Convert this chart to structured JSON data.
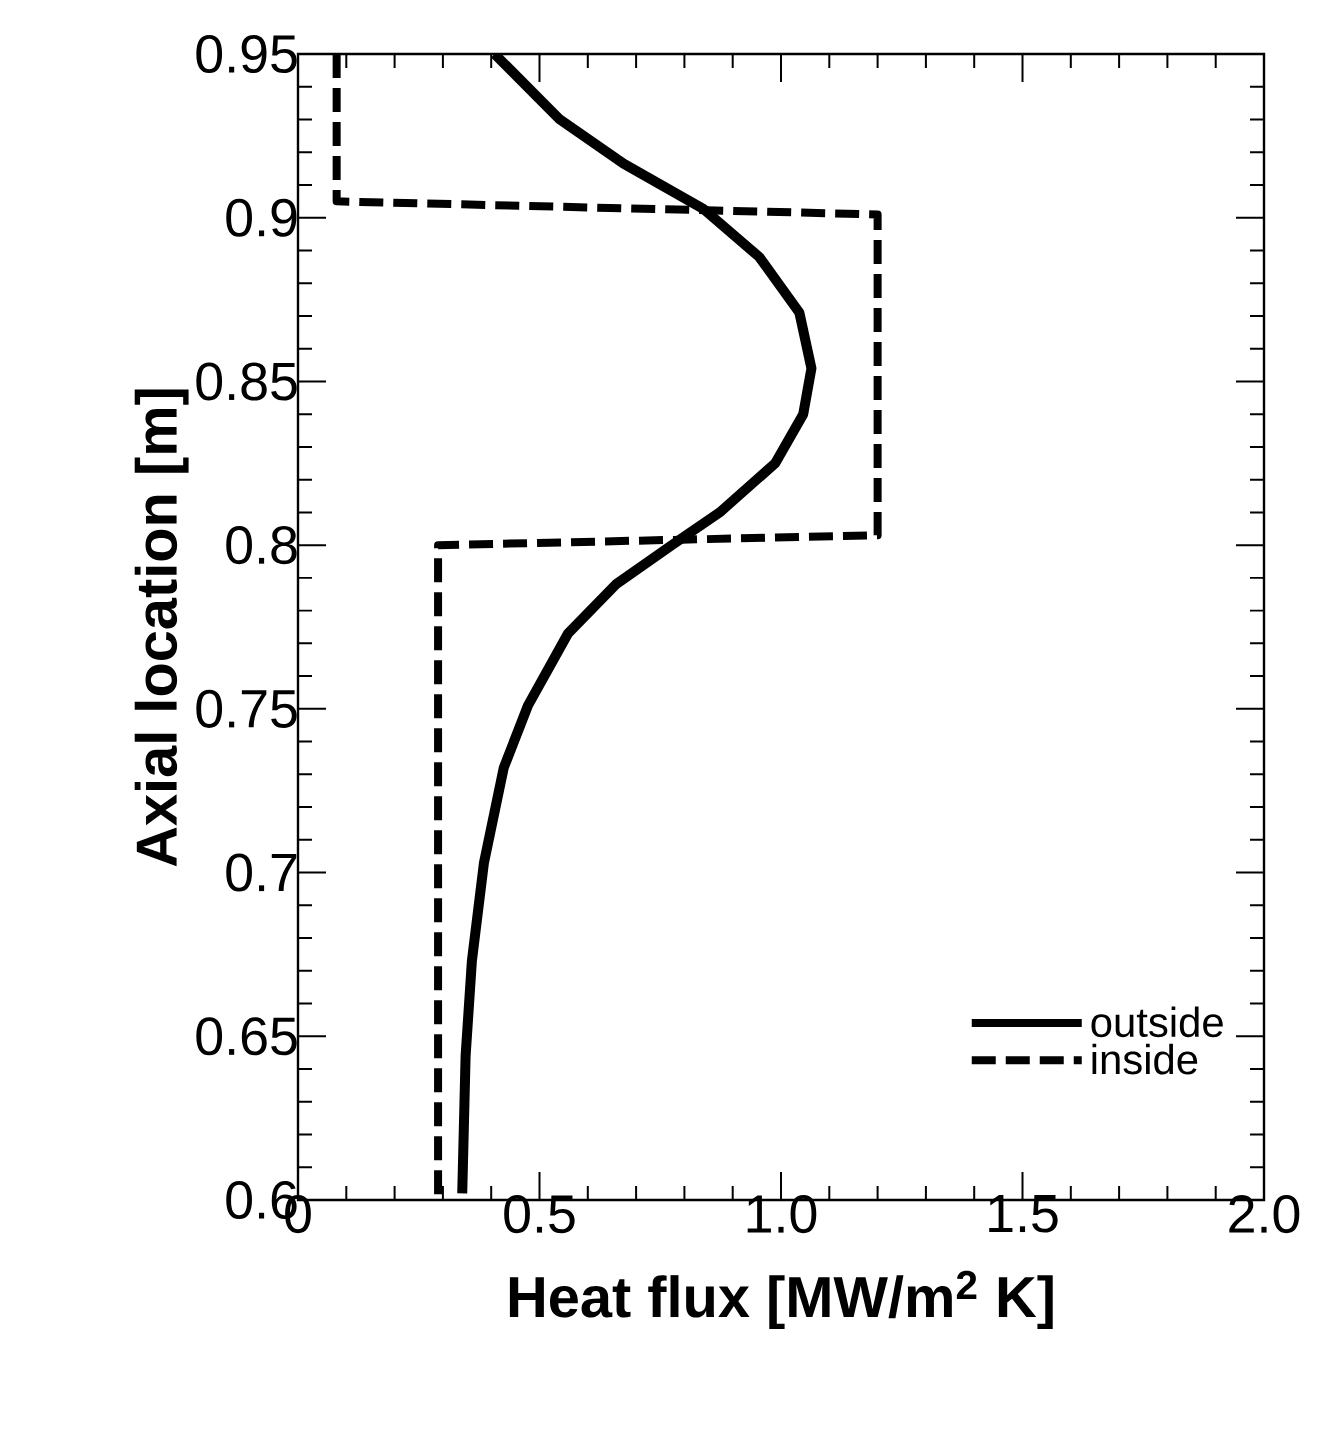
{
  "chart_data": {
    "type": "line",
    "xlabel": "Heat flux [MW/m$^{2}$ K]",
    "ylabel": "Axial location [m]",
    "xlim": [
      0,
      2.0
    ],
    "ylim": [
      0.6,
      0.95
    ],
    "xticks": [
      0,
      0.5,
      {
        "value": 1.0,
        "label": "1.0"
      },
      1.5,
      {
        "value": 2.0,
        "label": "2.0"
      }
    ],
    "yticks": [
      0.6,
      0.65,
      0.7,
      0.75,
      0.8,
      0.85,
      0.9,
      0.95
    ],
    "legend": "bottom right",
    "marker": "none",
    "grid": false,
    "series": [
      {
        "name": "outside",
        "color": "#000000",
        "line_style": "solid",
        "x": [
          0.407,
          0.542,
          0.674,
          0.84,
          0.955,
          1.038,
          1.063,
          1.046,
          0.988,
          0.873,
          0.774,
          0.658,
          0.559,
          0.476,
          0.426,
          0.385,
          0.36,
          0.347,
          0.34
        ],
        "values": [
          0.95,
          0.93,
          0.9165,
          0.9026,
          0.888,
          0.871,
          0.854,
          0.84,
          0.825,
          0.81,
          0.8,
          0.788,
          0.773,
          0.751,
          0.732,
          0.703,
          0.673,
          0.644,
          0.602
        ]
      },
      {
        "name": "inside",
        "color": "#000000",
        "line_style": "dashed",
        "x": [
          0.08,
          0.08,
          1.2,
          1.2,
          0.29,
          0.29
        ],
        "values": [
          0.95,
          0.905,
          0.901,
          0.803,
          0.8,
          0.6
        ]
      }
    ]
  }
}
